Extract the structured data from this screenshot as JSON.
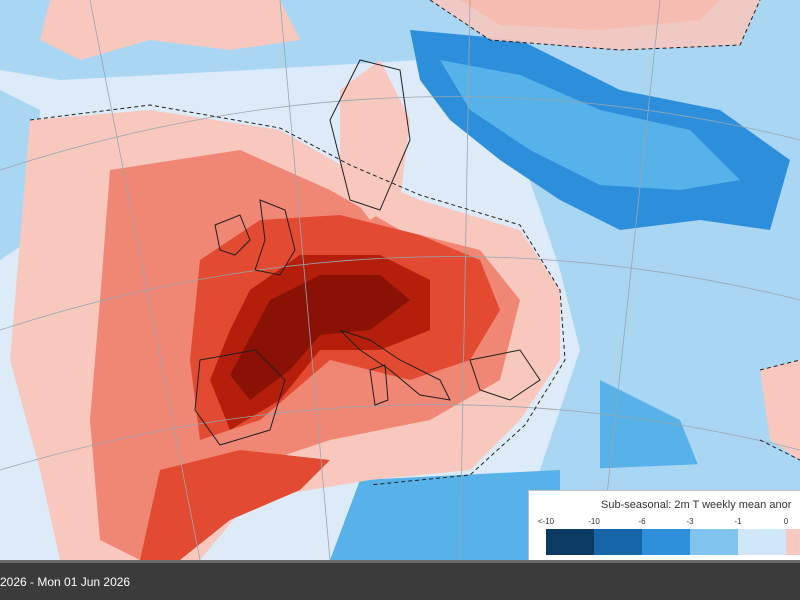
{
  "legend": {
    "title": "Sub-seasonal: 2m T weekly mean anor",
    "ticks": [
      "<-10",
      "-10",
      "-6",
      "-3",
      "-1",
      "0"
    ],
    "colors": [
      "#0b3a62",
      "#1565a8",
      "#2e8fdb",
      "#80c3ef",
      "#cfe7f8",
      "#f7c9c0"
    ]
  },
  "footer": {
    "date_range": "2026 - Mon 01 Jun 2026"
  },
  "map_colors": {
    "ocean_cold": "#dcebf7",
    "cold_1": "#a9d6f2",
    "cold_2": "#56b2e9",
    "cold_3": "#2d8fdc",
    "warm_1": "#f8c8bf",
    "warm_2": "#ef8774",
    "warm_3": "#e24a32",
    "warm_4": "#b41e0b",
    "warm_5": "#8a1106"
  }
}
